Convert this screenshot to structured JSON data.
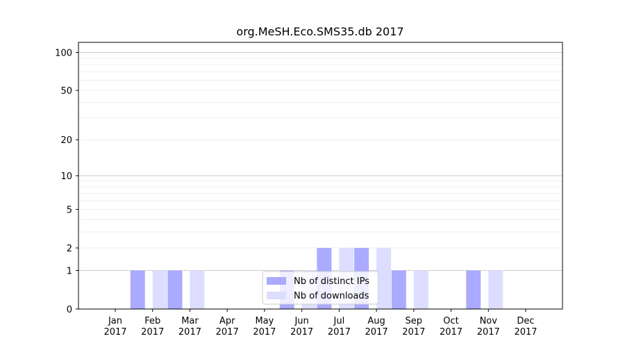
{
  "chart_data": {
    "type": "bar",
    "title": "org.MeSH.Eco.SMS35.db 2017",
    "xlabel": "",
    "ylabel": "",
    "y_scale": "symlog",
    "yticks": [
      0,
      1,
      2,
      5,
      10,
      20,
      50,
      100
    ],
    "ylim": [
      0,
      120
    ],
    "categories": [
      [
        "Jan",
        "2017"
      ],
      [
        "Feb",
        "2017"
      ],
      [
        "Mar",
        "2017"
      ],
      [
        "Apr",
        "2017"
      ],
      [
        "May",
        "2017"
      ],
      [
        "Jun",
        "2017"
      ],
      [
        "Jul",
        "2017"
      ],
      [
        "Aug",
        "2017"
      ],
      [
        "Sep",
        "2017"
      ],
      [
        "Oct",
        "2017"
      ],
      [
        "Nov",
        "2017"
      ],
      [
        "Dec",
        "2017"
      ]
    ],
    "series": [
      {
        "name": "Nb of distinct IPs",
        "color": "#aaaaff",
        "values": [
          0,
          1,
          1,
          0,
          0,
          1,
          2,
          2,
          1,
          0,
          1,
          0
        ]
      },
      {
        "name": "Nb of downloads",
        "color": "#ddddff",
        "values": [
          0,
          1,
          1,
          0,
          0,
          1,
          2,
          2,
          1,
          0,
          1,
          0
        ]
      }
    ],
    "legend": {
      "position": "lower center"
    },
    "grid": true
  }
}
